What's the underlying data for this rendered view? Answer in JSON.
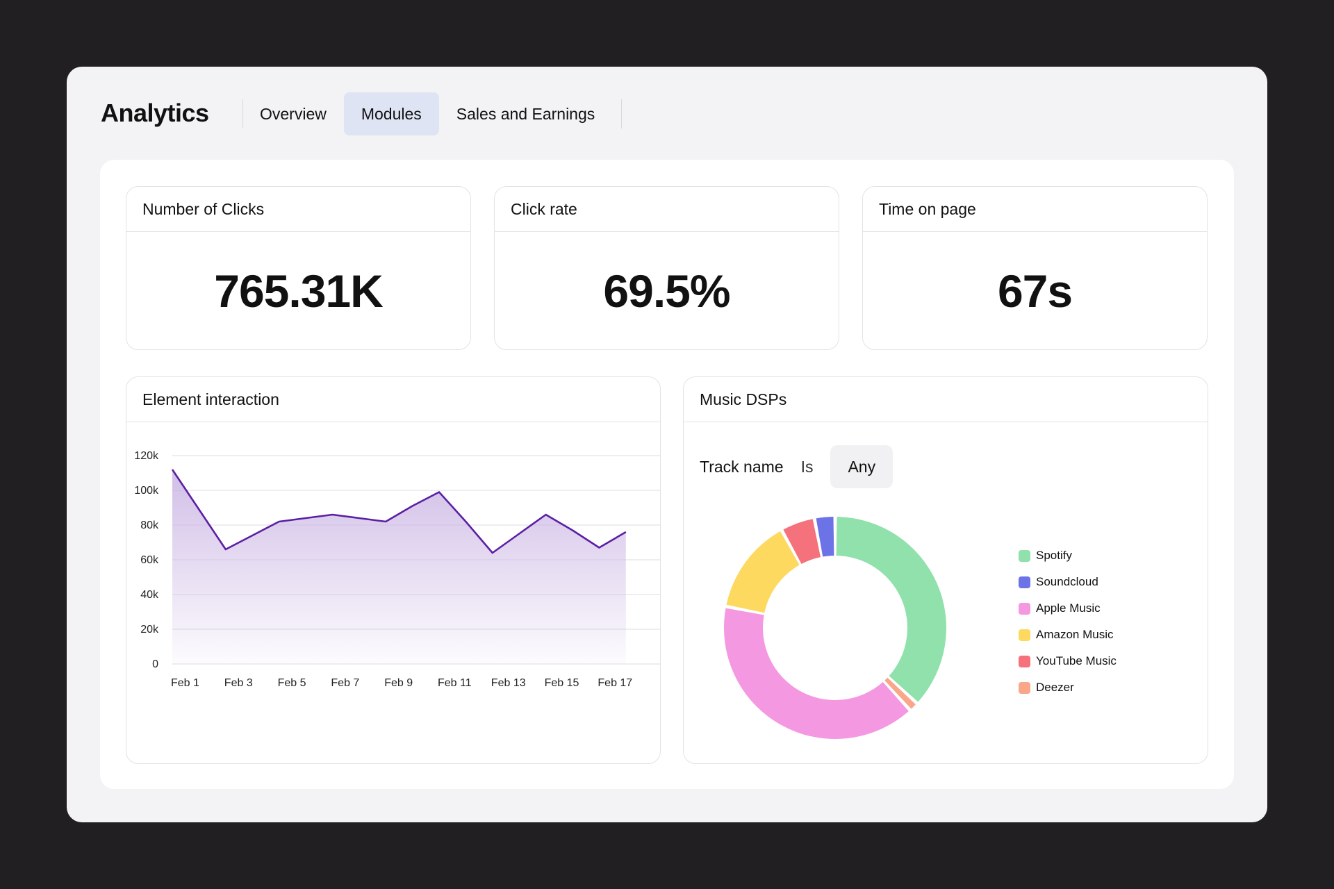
{
  "header": {
    "title": "Analytics",
    "tabs": [
      {
        "label": "Overview",
        "active": false
      },
      {
        "label": "Modules",
        "active": true
      },
      {
        "label": "Sales and Earnings",
        "active": false
      }
    ]
  },
  "kpis": {
    "clicks": {
      "title": "Number of Clicks",
      "value": "765.31K"
    },
    "rate": {
      "title": "Click rate",
      "value": "69.5%"
    },
    "time": {
      "title": "Time on page",
      "value": "67s"
    }
  },
  "interaction": {
    "title": "Element interaction"
  },
  "dsps": {
    "title": "Music DSPs",
    "filter": {
      "label": "Track name",
      "operator": "Is",
      "value": "Any"
    }
  },
  "chart_data": [
    {
      "type": "area",
      "title": "Element interaction",
      "x": [
        "Feb 1",
        "Feb 2",
        "Feb 3",
        "Feb 4",
        "Feb 5",
        "Feb 6",
        "Feb 7",
        "Feb 8",
        "Feb 9",
        "Feb 10",
        "Feb 11",
        "Feb 12",
        "Feb 13",
        "Feb 14",
        "Feb 15",
        "Feb 16",
        "Feb 17",
        "Feb 18"
      ],
      "x_tick_labels": [
        "Feb 1",
        "Feb 3",
        "Feb 5",
        "Feb 7",
        "Feb 9",
        "Feb 11",
        "Feb 13",
        "Feb 15",
        "Feb 17"
      ],
      "values": [
        112000,
        89000,
        66000,
        74000,
        82000,
        84000,
        86000,
        84000,
        82000,
        91000,
        99000,
        82000,
        64000,
        75000,
        86000,
        77000,
        67000,
        76000
      ],
      "y_ticks": [
        0,
        20000,
        40000,
        60000,
        80000,
        100000,
        120000
      ],
      "y_tick_labels": [
        "0",
        "20k",
        "40k",
        "60k",
        "80k",
        "100k",
        "120k"
      ],
      "ylim": [
        0,
        124000
      ],
      "grid": true,
      "color": "#5b1fa3",
      "fill_color": "#c9b3e3"
    },
    {
      "type": "pie",
      "title": "Music DSPs",
      "donut": true,
      "labels": [
        "Spotify",
        "Soundcloud",
        "Apple Music",
        "Amazon Music",
        "YouTube Music",
        "Deezer"
      ],
      "values": [
        37,
        3,
        40,
        14,
        5,
        1.4
      ],
      "colors": [
        "#90e1ab",
        "#6c73e6",
        "#f498e1",
        "#fdd960",
        "#f5717b",
        "#f9a68a"
      ],
      "draw_order": [
        "Spotify",
        "Deezer",
        "Apple Music",
        "Amazon Music",
        "YouTube Music",
        "Soundcloud"
      ],
      "legend": "right"
    }
  ]
}
